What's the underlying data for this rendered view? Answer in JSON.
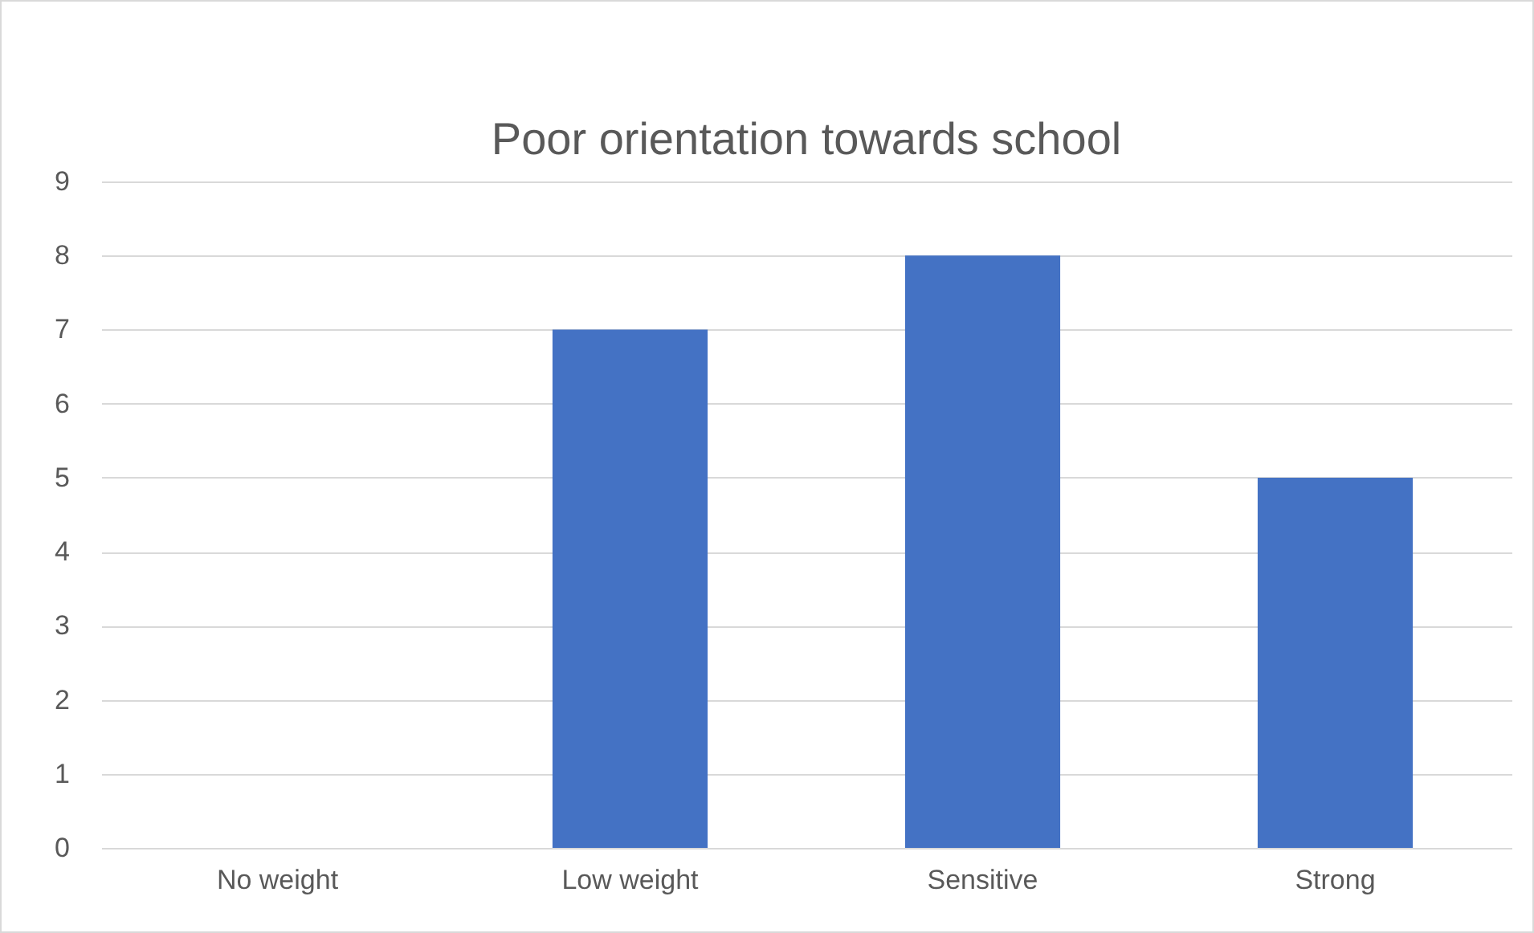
{
  "chart_data": {
    "type": "bar",
    "title": "Poor orientation towards school",
    "categories": [
      "No weight",
      "Low weight",
      "Sensitive",
      "Strong"
    ],
    "values": [
      0,
      7,
      8,
      5
    ],
    "color": "#4472c4",
    "ylim": [
      0,
      9
    ],
    "yticks": [
      0,
      1,
      2,
      3,
      4,
      5,
      6,
      7,
      8,
      9
    ],
    "grid": "y"
  }
}
